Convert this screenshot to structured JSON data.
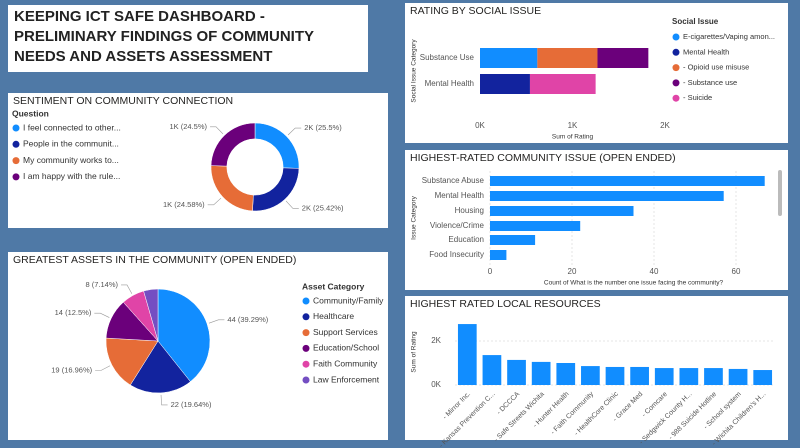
{
  "title": "KEEPING ICT SAFE DASHBOARD - PRELIMINARY FINDINGS OF COMMUNITY NEEDS AND ASSETS ASSESSMENT",
  "chart_data": [
    {
      "type": "donut",
      "title": "SENTIMENT ON COMMUNITY CONNECTION",
      "legend_title": "Question",
      "categories": [
        "I feel connected to other...",
        "People in the communit...",
        "My community works to...",
        "I am happy with the rule..."
      ],
      "values": [
        25.5,
        25.42,
        24.58,
        24.5
      ],
      "value_labels": [
        "2K (25.5%)",
        "2K (25.42%)",
        "1K (24.58%)",
        "1K (24.5%)"
      ],
      "colors": [
        "#118dff",
        "#12239e",
        "#e66c37",
        "#6b007b"
      ]
    },
    {
      "type": "pie",
      "title": "GREATEST ASSETS IN THE COMMUNITY (OPEN ENDED)",
      "legend_title": "Asset Category",
      "categories": [
        "Community/Family",
        "Healthcare",
        "Support Services",
        "Education/School",
        "Faith Community",
        "Law Enforcement"
      ],
      "values": [
        44,
        22,
        19,
        14,
        8,
        5
      ],
      "value_labels": [
        "44 (39.29%)",
        "22 (19.64%)",
        "19 (16.96%)",
        "14 (12.5%)",
        "8 (7.14%)",
        null
      ],
      "colors": [
        "#118dff",
        "#12239e",
        "#e66c37",
        "#6b007b",
        "#e044a7",
        "#744ec2"
      ]
    },
    {
      "type": "bar",
      "orientation": "horizontal",
      "stacked": true,
      "title": "RATING BY SOCIAL ISSUE",
      "x_label": "Sum of Rating",
      "y_label": "Social Issue Category",
      "legend_title": "Social Issue",
      "categories": [
        "Substance Use",
        "Mental Health"
      ],
      "series": [
        {
          "name": "E-cigarettes/Vaping amon...",
          "color": "#118dff",
          "values": [
            620,
            null
          ]
        },
        {
          "name": "Mental Health",
          "color": "#12239e",
          "values": [
            null,
            540
          ]
        },
        {
          "name": "- Opioid use misuse",
          "color": "#e66c37",
          "values": [
            650,
            null
          ]
        },
        {
          "name": "- Substance use",
          "color": "#6b007b",
          "values": [
            550,
            null
          ]
        },
        {
          "name": "- Suicide",
          "color": "#e044a7",
          "values": [
            null,
            710
          ]
        }
      ],
      "xlim": [
        0,
        2000
      ],
      "xticks": [
        {
          "value": 0,
          "label": "0K"
        },
        {
          "value": 1000,
          "label": "1K"
        },
        {
          "value": 2000,
          "label": "2K"
        }
      ]
    },
    {
      "type": "bar",
      "orientation": "horizontal",
      "title": "HIGHEST-RATED COMMUNITY ISSUE (OPEN ENDED)",
      "x_label": "Count of What is the number one issue facing the community?",
      "y_label": "Issue Category",
      "categories": [
        "Substance Abuse",
        "Mental Health",
        "Housing",
        "Violence/Crime",
        "Education",
        "Food Insecurity"
      ],
      "values": [
        67,
        57,
        35,
        22,
        11,
        4
      ],
      "color": "#118dff",
      "xlim": [
        0,
        70
      ],
      "xticks": [
        0,
        20,
        40,
        60
      ],
      "grid": true
    },
    {
      "type": "bar",
      "orientation": "vertical",
      "title": "HIGHEST RATED LOCAL RESOURCES",
      "y_label": "Sum of Rating",
      "categories": [
        "- Mirror Inc.",
        "- Kansas Prevention C...",
        "- DCCCA",
        "- Safe Streets Wichita",
        "- Hunter Health",
        "- Faith Community",
        "- HealthCore Clinic",
        "- Grace Med",
        "- Comcare",
        "- Sedgwick County H...",
        "- 988 Suicide Hotline",
        "- School system",
        "- Wichita Children's H..."
      ],
      "values": [
        2770,
        1360,
        1140,
        1050,
        1000,
        860,
        820,
        820,
        770,
        770,
        770,
        730,
        680
      ],
      "color": "#118dff",
      "ylim": [
        0,
        3000
      ],
      "yticks": [
        {
          "value": 0,
          "label": "0K"
        },
        {
          "value": 2000,
          "label": "2K"
        }
      ],
      "grid": true
    }
  ]
}
